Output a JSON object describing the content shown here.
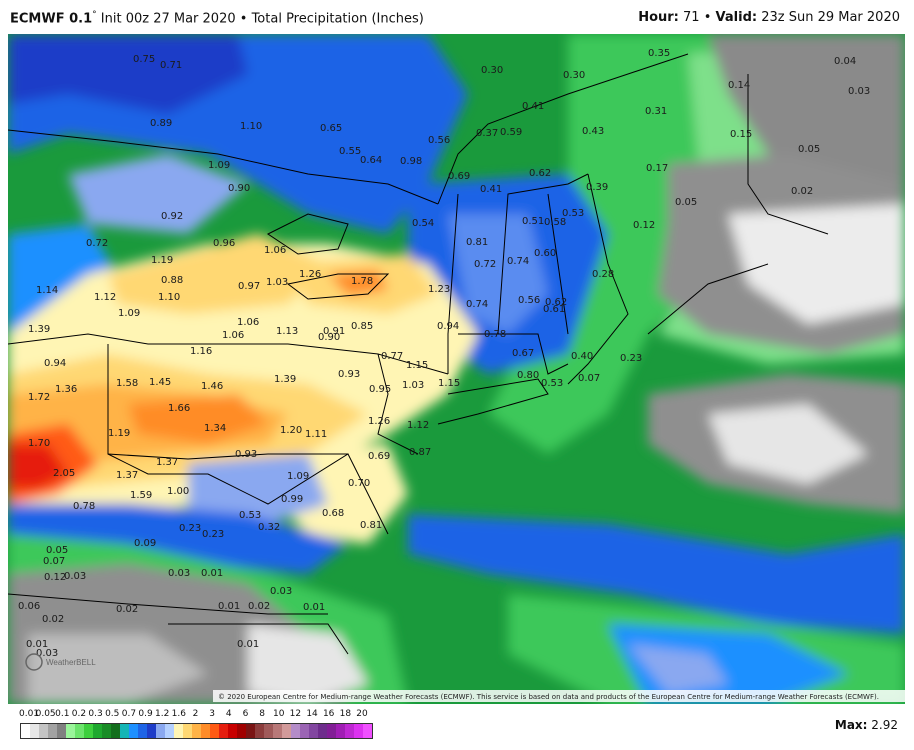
{
  "header": {
    "model": "ECMWF 0.1",
    "degree": "°",
    "init": "Init 00z 27 Mar 2020",
    "separator": "•",
    "product": "Total Precipitation (Inches)",
    "hour_label": "Hour:",
    "hour_value": "71",
    "valid_label": "Valid:",
    "valid_value": "23z Sun 29 Mar 2020"
  },
  "map": {
    "copyright": "© 2020 European Centre for Medium-range Weather Forecasts (ECMWF). This service is based on data and products of the European Centre for Medium-range Weather Forecasts (ECMWF).",
    "watermark": "WeatherBELL",
    "values": [
      "0.75",
      "0.71",
      "0.89",
      "1.10",
      "0.65",
      "0.56",
      "0.30",
      "0.30",
      "0.35",
      "0.04",
      "0.14",
      "0.03",
      "0.41",
      "0.37",
      "0.59",
      "0.43",
      "0.31",
      "1.09",
      "0.90",
      "0.55",
      "0.64",
      "0.98",
      "0.69",
      "0.62",
      "0.17",
      "0.15",
      "0.05",
      "0.72",
      "0.92",
      "0.96",
      "1.06",
      "0.54",
      "0.41",
      "0.51",
      "0.53",
      "0.58",
      "0.39",
      "0.05",
      "0.12",
      "0.02",
      "1.19",
      "0.88",
      "1.10",
      "0.97",
      "1.03",
      "1.26",
      "1.78",
      "1.23",
      "0.81",
      "0.72",
      "0.74",
      "0.60",
      "0.61",
      "0.56",
      "0.62",
      "0.28",
      "1.14",
      "1.12",
      "1.09",
      "1.06",
      "1.06",
      "1.13",
      "0.91",
      "0.90",
      "0.85",
      "0.94",
      "0.74",
      "0.78",
      "1.39",
      "0.94",
      "1.16",
      "0.77",
      "1.15",
      "0.67",
      "0.80",
      "0.53",
      "0.40",
      "0.23",
      "0.07",
      "1.58",
      "1.45",
      "1.46",
      "1.39",
      "0.93",
      "0.95",
      "1.03",
      "1.15",
      "1.72",
      "1.36",
      "1.66",
      "1.34",
      "1.20",
      "1.11",
      "1.26",
      "1.12",
      "1.70",
      "1.19",
      "1.37",
      "0.93",
      "0.69",
      "0.87",
      "2.05",
      "1.37",
      "1.59",
      "1.00",
      "1.09",
      "0.70",
      "0.78",
      "0.53",
      "0.99",
      "0.68",
      "0.81",
      "0.23",
      "0.23",
      "0.32",
      "0.09",
      "0.05",
      "0.07",
      "0.12",
      "0.03",
      "0.03",
      "0.01",
      "0.03",
      "0.06",
      "0.02",
      "0.01",
      "0.02",
      "0.01",
      "0.02",
      "0.01",
      "0.01",
      "0.03"
    ]
  },
  "legend": {
    "labels": [
      "0.01",
      "0.05",
      "0.1",
      "0.2",
      "0.3",
      "0.5",
      "0.7",
      "0.9",
      "1.2",
      "1.6",
      "2",
      "3",
      "4",
      "6",
      "8",
      "10",
      "12",
      "14",
      "16",
      "18",
      "20"
    ],
    "colors": [
      "#ffffff",
      "#e6e6e6",
      "#c4c4c4",
      "#a2a2a2",
      "#808080",
      "#9af59a",
      "#6ce46c",
      "#3dcf3d",
      "#1ea82e",
      "#198c26",
      "#136e1d",
      "#15b5b5",
      "#1e90ff",
      "#1e64e6",
      "#1e3cc8",
      "#8aa8f0",
      "#b4d0ff",
      "#fff5b4",
      "#ffd873",
      "#ffb347",
      "#ff8c28",
      "#ff5a14",
      "#e61e0f",
      "#c80000",
      "#a00000",
      "#7a1414",
      "#8c3c3c",
      "#a05a5a",
      "#b87878",
      "#d29a9a",
      "#b48cc8",
      "#9b64b4",
      "#8246a0",
      "#6e2d8c",
      "#821e96",
      "#a01eb4",
      "#be28d2",
      "#dc32f0",
      "#f050ff"
    ],
    "max_label": "Max:",
    "max_value": "2.92"
  }
}
